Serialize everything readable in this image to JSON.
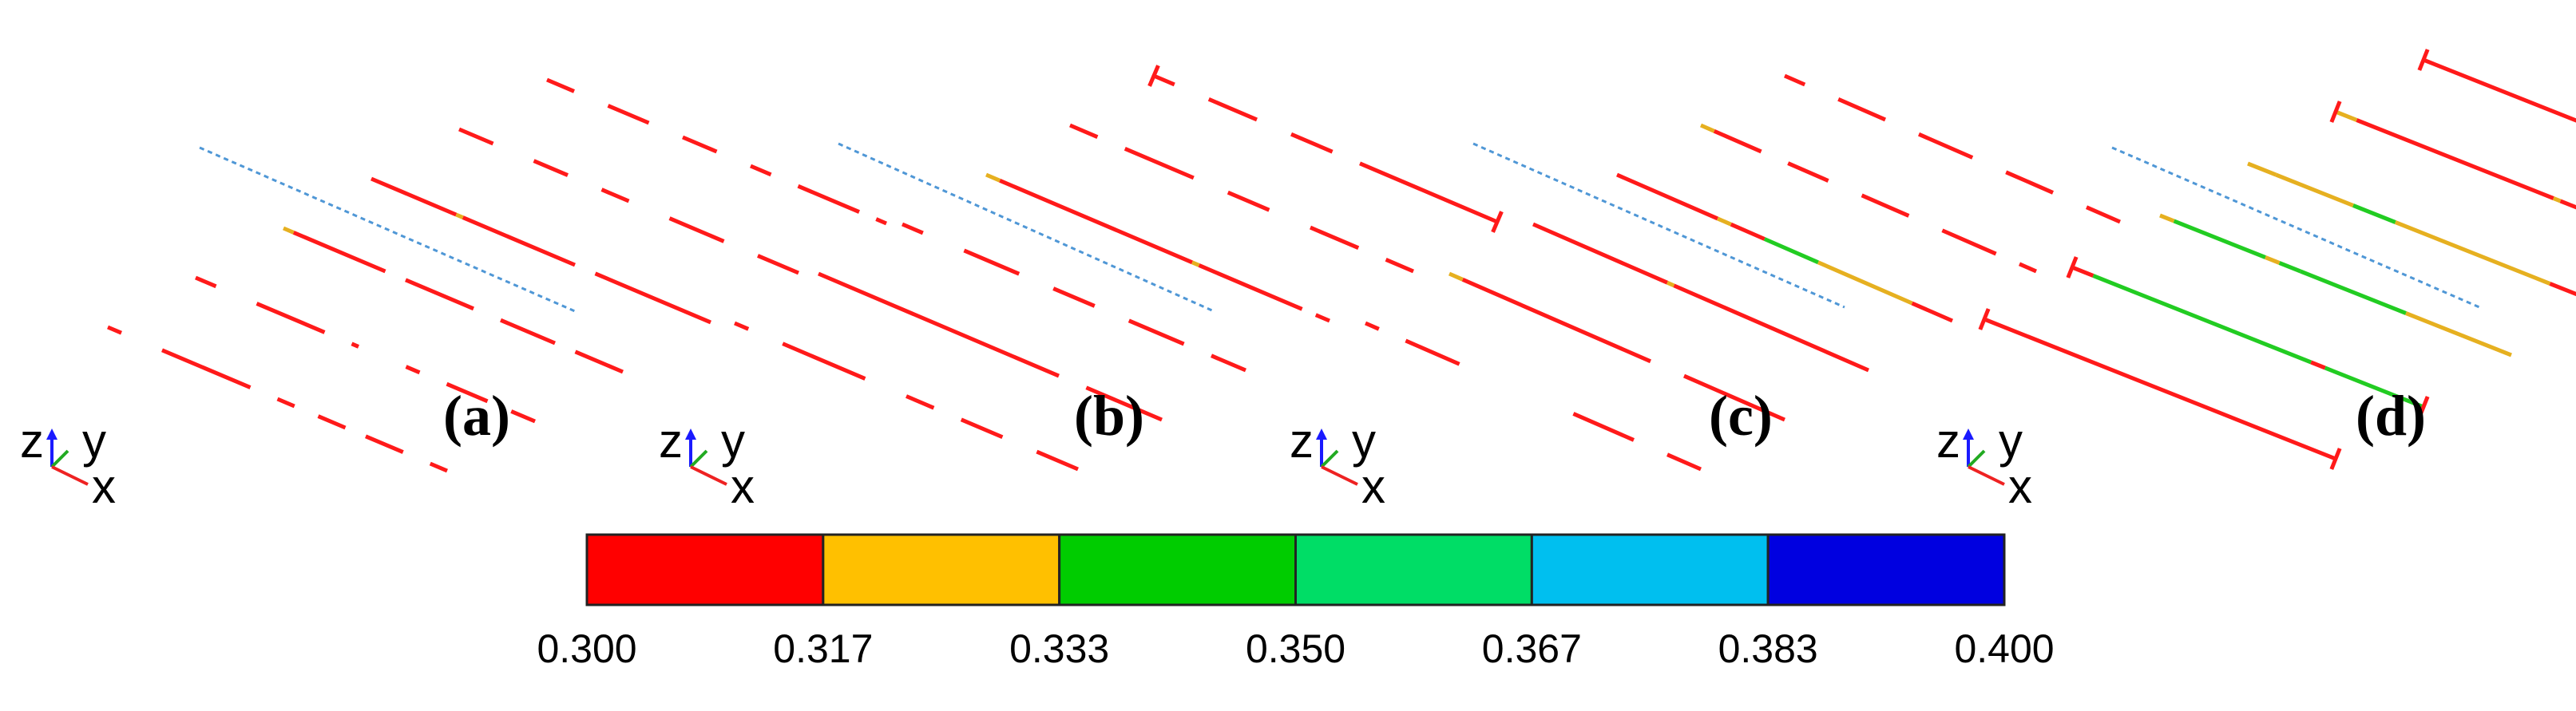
{
  "panels": [
    {
      "label": "(a)",
      "beams": [
        {
          "segments": [
            [
              0.0,
              0.04,
              "red"
            ],
            [
              0.16,
              0.42,
              "red"
            ],
            [
              0.5,
              0.55,
              "red"
            ],
            [
              0.62,
              0.7,
              "red"
            ],
            [
              0.76,
              0.87,
              "red"
            ],
            [
              0.95,
              1.0,
              "red"
            ]
          ],
          "endcap": false
        },
        {
          "segments": [
            [
              0.0,
              0.06,
              "red"
            ],
            [
              0.18,
              0.38,
              "red"
            ],
            [
              0.46,
              0.48,
              "red"
            ],
            [
              0.62,
              0.66,
              "red"
            ],
            [
              0.74,
              0.86,
              "red"
            ],
            [
              0.93,
              1.0,
              "red"
            ]
          ],
          "endcap": false
        },
        {
          "segments": [
            [
              0.0,
              0.03,
              "orange"
            ],
            [
              0.03,
              0.3,
              "red"
            ],
            [
              0.36,
              0.56,
              "red"
            ],
            [
              0.64,
              0.8,
              "red"
            ],
            [
              0.86,
              1.0,
              "red"
            ]
          ],
          "endcap": false
        },
        {
          "segments": [
            [
              0.0,
              0.25,
              "red"
            ],
            [
              0.25,
              0.27,
              "orange"
            ],
            [
              0.27,
              0.6,
              "red"
            ],
            [
              0.66,
              1.0,
              "red"
            ]
          ],
          "endcap": false
        },
        {
          "segments": [
            [
              0.0,
              0.1,
              "red"
            ],
            [
              0.22,
              0.32,
              "red"
            ],
            [
              0.42,
              0.5,
              "red"
            ],
            [
              0.62,
              0.78,
              "red"
            ],
            [
              0.88,
              1.0,
              "red"
            ]
          ],
          "endcap": false
        },
        {
          "segments": [
            [
              0.0,
              0.08,
              "red"
            ],
            [
              0.18,
              0.3,
              "red"
            ],
            [
              0.4,
              0.5,
              "red"
            ],
            [
              0.6,
              0.66,
              "red"
            ],
            [
              0.74,
              0.92,
              "red"
            ],
            [
              0.97,
              1.0,
              "red"
            ]
          ],
          "endcap": false
        }
      ]
    },
    {
      "label": "(b)",
      "beams": [
        {
          "segments": [
            [
              0.0,
              0.04,
              "red"
            ],
            [
              0.14,
              0.38,
              "red"
            ],
            [
              0.5,
              0.58,
              "red"
            ],
            [
              0.66,
              0.78,
              "red"
            ],
            [
              0.88,
              1.0,
              "red"
            ]
          ],
          "endcap": false
        },
        {
          "segments": [
            [
              0.0,
              0.7,
              "red"
            ],
            [
              0.78,
              1.0,
              "red"
            ]
          ],
          "endcap": false
        },
        {
          "segments": [
            [
              0.0,
              0.06,
              "red"
            ],
            [
              0.18,
              0.34,
              "red"
            ],
            [
              0.44,
              0.56,
              "red"
            ],
            [
              0.66,
              0.82,
              "red"
            ],
            [
              0.9,
              1.0,
              "red"
            ]
          ],
          "endcap": false
        },
        {
          "segments": [
            [
              0.0,
              0.04,
              "orange"
            ],
            [
              0.04,
              0.6,
              "red"
            ],
            [
              0.6,
              0.62,
              "orange"
            ],
            [
              0.62,
              0.92,
              "red"
            ],
            [
              0.96,
              1.0,
              "red"
            ]
          ],
          "endcap": false
        },
        {
          "segments": [
            [
              0.0,
              0.08,
              "red"
            ],
            [
              0.16,
              0.36,
              "red"
            ],
            [
              0.46,
              0.58,
              "red"
            ],
            [
              0.7,
              0.84,
              "red"
            ],
            [
              0.92,
              1.0,
              "red"
            ]
          ],
          "endcap": false
        },
        {
          "segments": [
            [
              0.0,
              0.06,
              "red"
            ],
            [
              0.16,
              0.3,
              "red"
            ],
            [
              0.4,
              0.52,
              "red"
            ],
            [
              0.6,
              1.0,
              "red"
            ]
          ],
          "endcap": true
        }
      ]
    },
    {
      "label": "(c)",
      "beams": [
        {
          "segments": [
            [
              0.0,
              0.04,
              "red"
            ],
            [
              0.12,
              0.28,
              "red"
            ],
            [
              0.62,
              0.8,
              "red"
            ],
            [
              0.9,
              1.0,
              "red"
            ]
          ],
          "endcap": false
        },
        {
          "segments": [
            [
              0.0,
              0.04,
              "orange"
            ],
            [
              0.04,
              0.6,
              "red"
            ],
            [
              0.7,
              1.0,
              "red"
            ]
          ],
          "endcap": false
        },
        {
          "segments": [
            [
              0.0,
              0.4,
              "red"
            ],
            [
              0.4,
              0.42,
              "orange"
            ],
            [
              0.42,
              1.0,
              "red"
            ]
          ],
          "endcap": false
        },
        {
          "segments": [
            [
              0.0,
              0.3,
              "red"
            ],
            [
              0.3,
              0.34,
              "orange"
            ],
            [
              0.34,
              0.44,
              "red"
            ],
            [
              0.44,
              0.6,
              "green"
            ],
            [
              0.6,
              0.88,
              "orange"
            ],
            [
              0.88,
              1.0,
              "red"
            ]
          ],
          "endcap": false
        },
        {
          "segments": [
            [
              0.0,
              0.04,
              "orange"
            ],
            [
              0.04,
              0.18,
              "red"
            ],
            [
              0.26,
              0.38,
              "red"
            ],
            [
              0.48,
              0.62,
              "red"
            ],
            [
              0.72,
              0.88,
              "red"
            ],
            [
              0.95,
              1.0,
              "red"
            ]
          ],
          "endcap": false
        },
        {
          "segments": [
            [
              0.0,
              0.06,
              "red"
            ],
            [
              0.16,
              0.3,
              "red"
            ],
            [
              0.4,
              0.56,
              "red"
            ],
            [
              0.66,
              0.8,
              "red"
            ],
            [
              0.9,
              1.0,
              "red"
            ]
          ],
          "endcap": false
        }
      ]
    },
    {
      "label": "(d)",
      "beams": [
        {
          "segments": [
            [
              0.0,
              1.0,
              "red"
            ]
          ],
          "endcap": true
        },
        {
          "segments": [
            [
              0.0,
              0.06,
              "red"
            ],
            [
              0.06,
              0.68,
              "green"
            ],
            [
              0.68,
              0.72,
              "red"
            ],
            [
              0.72,
              1.0,
              "green"
            ]
          ],
          "endcap": true
        },
        {
          "segments": [
            [
              0.0,
              0.04,
              "orange"
            ],
            [
              0.04,
              0.3,
              "green"
            ],
            [
              0.3,
              0.34,
              "orange"
            ],
            [
              0.34,
              0.4,
              "green"
            ],
            [
              0.4,
              0.7,
              "green"
            ],
            [
              0.7,
              1.0,
              "orange"
            ]
          ],
          "endcap": false
        },
        {
          "segments": [
            [
              0.0,
              0.08,
              "orange"
            ],
            [
              0.08,
              0.3,
              "orange"
            ],
            [
              0.3,
              0.42,
              "green"
            ],
            [
              0.42,
              0.86,
              "orange"
            ],
            [
              0.86,
              1.0,
              "red"
            ]
          ],
          "endcap": false
        },
        {
          "segments": [
            [
              0.0,
              0.06,
              "orange"
            ],
            [
              0.06,
              0.62,
              "red"
            ],
            [
              0.62,
              0.64,
              "orange"
            ],
            [
              0.64,
              1.0,
              "red"
            ]
          ],
          "endcap": true
        },
        {
          "segments": [
            [
              0.0,
              0.55,
              "red"
            ],
            [
              0.55,
              0.57,
              "orange"
            ],
            [
              0.57,
              1.0,
              "red"
            ]
          ],
          "endcap": true
        }
      ]
    }
  ],
  "triad": {
    "z": "z",
    "y": "y",
    "x": "x"
  },
  "colorbar": {
    "colors": [
      "#ff0000",
      "#ffc000",
      "#00cc00",
      "#00dd66",
      "#00bfef",
      "#0000e0"
    ],
    "tick_labels": [
      "0.300",
      "0.317",
      "0.333",
      "0.350",
      "0.367",
      "0.383",
      "0.400"
    ]
  },
  "segment_colors": {
    "red": "#ff1a1a",
    "orange": "#e6b020",
    "green": "#22cc22"
  },
  "centerline_color": "#4f97d6",
  "triad_colors": {
    "z": "#1a1aff",
    "y": "#22aa22",
    "x": "#ee2222"
  }
}
